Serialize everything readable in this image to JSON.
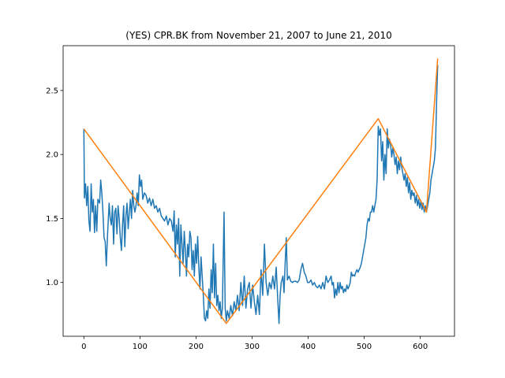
{
  "chart_data": {
    "type": "line",
    "title": "(YES) CPR.BK from November 21, 2007 to June 21, 2010",
    "xlabel": "",
    "ylabel": "",
    "xlim": [
      -37,
      661
    ],
    "ylim": [
      0.58,
      2.85
    ],
    "x_ticks": [
      0,
      100,
      200,
      300,
      400,
      500,
      600
    ],
    "y_ticks": [
      1.0,
      1.5,
      2.0,
      2.5
    ],
    "grid": false,
    "legend": "none",
    "series": [
      {
        "color": "#1f77b4",
        "points": [
          [
            0,
            2.2
          ],
          [
            1,
            1.66
          ],
          [
            3,
            1.77
          ],
          [
            5,
            1.6
          ],
          [
            7,
            1.75
          ],
          [
            9,
            1.48
          ],
          [
            11,
            1.4
          ],
          [
            13,
            1.77
          ],
          [
            15,
            1.55
          ],
          [
            17,
            1.65
          ],
          [
            19,
            1.39
          ],
          [
            21,
            1.6
          ],
          [
            23,
            1.4
          ],
          [
            25,
            1.65
          ],
          [
            28,
            1.62
          ],
          [
            30,
            1.8
          ],
          [
            32,
            1.7
          ],
          [
            34,
            1.55
          ],
          [
            36,
            1.35
          ],
          [
            38,
            1.32
          ],
          [
            40,
            1.13
          ],
          [
            42,
            1.35
          ],
          [
            45,
            1.62
          ],
          [
            47,
            1.5
          ],
          [
            49,
            1.45
          ],
          [
            51,
            1.6
          ],
          [
            53,
            1.3
          ],
          [
            55,
            1.55
          ],
          [
            57,
            1.58
          ],
          [
            59,
            1.38
          ],
          [
            61,
            1.6
          ],
          [
            63,
            1.5
          ],
          [
            65,
            1.35
          ],
          [
            67,
            1.25
          ],
          [
            69,
            1.45
          ],
          [
            71,
            1.6
          ],
          [
            73,
            1.28
          ],
          [
            75,
            1.52
          ],
          [
            77,
            1.62
          ],
          [
            79,
            1.42
          ],
          [
            81,
            1.55
          ],
          [
            83,
            1.65
          ],
          [
            85,
            1.5
          ],
          [
            87,
            1.72
          ],
          [
            89,
            1.6
          ],
          [
            91,
            1.55
          ],
          [
            93,
            1.6
          ],
          [
            95,
            1.7
          ],
          [
            97,
            1.6
          ],
          [
            99,
            1.84
          ],
          [
            101,
            1.75
          ],
          [
            103,
            1.8
          ],
          [
            105,
            1.65
          ],
          [
            108,
            1.7
          ],
          [
            111,
            1.68
          ],
          [
            114,
            1.62
          ],
          [
            117,
            1.66
          ],
          [
            120,
            1.6
          ],
          [
            123,
            1.65
          ],
          [
            126,
            1.58
          ],
          [
            129,
            1.6
          ],
          [
            132,
            1.55
          ],
          [
            135,
            1.58
          ],
          [
            138,
            1.52
          ],
          [
            141,
            1.5
          ],
          [
            144,
            1.48
          ],
          [
            147,
            1.52
          ],
          [
            150,
            1.45
          ],
          [
            153,
            1.5
          ],
          [
            156,
            1.48
          ],
          [
            159,
            1.4
          ],
          [
            161,
            1.56
          ],
          [
            163,
            1.2
          ],
          [
            165,
            1.45
          ],
          [
            167,
            1.3
          ],
          [
            169,
            1.5
          ],
          [
            171,
            1.05
          ],
          [
            173,
            1.45
          ],
          [
            175,
            1.3
          ],
          [
            177,
            1.15
          ],
          [
            179,
            1.4
          ],
          [
            181,
            1.25
          ],
          [
            183,
            1.05
          ],
          [
            185,
            1.3
          ],
          [
            187,
            1.2
          ],
          [
            189,
            1.4
          ],
          [
            191,
            1.35
          ],
          [
            193,
            1.1
          ],
          [
            195,
            1.25
          ],
          [
            197,
            1.05
          ],
          [
            199,
            1.3
          ],
          [
            201,
            1.15
          ],
          [
            203,
            1.36
          ],
          [
            205,
            1.12
          ],
          [
            207,
            0.95
          ],
          [
            209,
            1.2
          ],
          [
            211,
            1.05
          ],
          [
            213,
            0.9
          ],
          [
            215,
            0.72
          ],
          [
            217,
            0.7
          ],
          [
            219,
            0.78
          ],
          [
            221,
            0.72
          ],
          [
            223,
            0.95
          ],
          [
            225,
            0.8
          ],
          [
            227,
            1.1
          ],
          [
            229,
            0.92
          ],
          [
            231,
            1.3
          ],
          [
            233,
            0.88
          ],
          [
            235,
            1.15
          ],
          [
            237,
            0.82
          ],
          [
            239,
            0.9
          ],
          [
            241,
            0.78
          ],
          [
            243,
            0.85
          ],
          [
            245,
            0.72
          ],
          [
            247,
            0.8
          ],
          [
            250,
            1.55
          ],
          [
            252,
            0.8
          ],
          [
            254,
            0.7
          ],
          [
            256,
            0.78
          ],
          [
            259,
            0.72
          ],
          [
            262,
            0.82
          ],
          [
            265,
            0.74
          ],
          [
            268,
            0.85
          ],
          [
            271,
            0.78
          ],
          [
            274,
            0.9
          ],
          [
            277,
            0.78
          ],
          [
            280,
            1.0
          ],
          [
            283,
            0.82
          ],
          [
            286,
            1.05
          ],
          [
            289,
            0.8
          ],
          [
            292,
            0.95
          ],
          [
            295,
            1.0
          ],
          [
            298,
            0.8
          ],
          [
            301,
            0.98
          ],
          [
            304,
            0.85
          ],
          [
            307,
            0.75
          ],
          [
            310,
            0.9
          ],
          [
            313,
            0.75
          ],
          [
            316,
            1.1
          ],
          [
            319,
            0.9
          ],
          [
            322,
            1.3
          ],
          [
            325,
            1.0
          ],
          [
            328,
            0.9
          ],
          [
            331,
            1.0
          ],
          [
            334,
            0.95
          ],
          [
            337,
            1.05
          ],
          [
            340,
            0.95
          ],
          [
            343,
            1.12
          ],
          [
            346,
            0.85
          ],
          [
            348,
            0.68
          ],
          [
            350,
            0.9
          ],
          [
            352,
            1.0
          ],
          [
            355,
            1.05
          ],
          [
            357,
            0.92
          ],
          [
            359,
            1.15
          ],
          [
            361,
            1.35
          ],
          [
            363,
            1.02
          ],
          [
            366,
            1.05
          ],
          [
            369,
            1.01
          ],
          [
            372,
            1.0
          ],
          [
            375,
            1.01
          ],
          [
            378,
            1.01
          ],
          [
            381,
            1.0
          ],
          [
            384,
            1.02
          ],
          [
            387,
            1.1
          ],
          [
            390,
            1.15
          ],
          [
            393,
            1.08
          ],
          [
            396,
            1.05
          ],
          [
            399,
            1.0
          ],
          [
            402,
            1.0
          ],
          [
            405,
            1.02
          ],
          [
            408,
            0.98
          ],
          [
            411,
            1.0
          ],
          [
            414,
            0.97
          ],
          [
            417,
            0.96
          ],
          [
            420,
            0.98
          ],
          [
            423,
            0.95
          ],
          [
            426,
            1.0
          ],
          [
            429,
            0.95
          ],
          [
            432,
            1.05
          ],
          [
            435,
            1.0
          ],
          [
            438,
            1.02
          ],
          [
            441,
            1.05
          ],
          [
            443,
            0.98
          ],
          [
            445,
            1.0
          ],
          [
            447,
            0.88
          ],
          [
            449,
            0.95
          ],
          [
            451,
            0.9
          ],
          [
            453,
            1.0
          ],
          [
            455,
            0.92
          ],
          [
            457,
            1.0
          ],
          [
            459,
            0.95
          ],
          [
            461,
            0.97
          ],
          [
            463,
            0.92
          ],
          [
            465,
            0.95
          ],
          [
            467,
            0.93
          ],
          [
            469,
            0.98
          ],
          [
            471,
            0.95
          ],
          [
            473,
            0.97
          ],
          [
            475,
            1.0
          ],
          [
            477,
            1.08
          ],
          [
            479,
            1.05
          ],
          [
            481,
            1.06
          ],
          [
            483,
            1.05
          ],
          [
            485,
            1.08
          ],
          [
            487,
            1.1
          ],
          [
            489,
            1.08
          ],
          [
            491,
            1.1
          ],
          [
            493,
            1.12
          ],
          [
            495,
            1.15
          ],
          [
            497,
            1.2
          ],
          [
            499,
            1.25
          ],
          [
            501,
            1.3
          ],
          [
            503,
            1.35
          ],
          [
            505,
            1.45
          ],
          [
            507,
            1.5
          ],
          [
            509,
            1.48
          ],
          [
            511,
            1.55
          ],
          [
            513,
            1.55
          ],
          [
            515,
            1.6
          ],
          [
            517,
            1.55
          ],
          [
            519,
            1.6
          ],
          [
            521,
            1.65
          ],
          [
            523,
            1.8
          ],
          [
            525,
            2.22
          ],
          [
            527,
            2.15
          ],
          [
            529,
            2.2
          ],
          [
            531,
            1.95
          ],
          [
            533,
            2.1
          ],
          [
            535,
            1.8
          ],
          [
            537,
            2.0
          ],
          [
            539,
            1.85
          ],
          [
            541,
            2.2
          ],
          [
            543,
            2.05
          ],
          [
            545,
            2.12
          ],
          [
            547,
            2.08
          ],
          [
            549,
            1.98
          ],
          [
            551,
            2.05
          ],
          [
            553,
            2.0
          ],
          [
            555,
            1.92
          ],
          [
            557,
            1.98
          ],
          [
            559,
            1.85
          ],
          [
            561,
            1.95
          ],
          [
            563,
            1.88
          ],
          [
            565,
            1.98
          ],
          [
            567,
            1.9
          ],
          [
            569,
            1.85
          ],
          [
            571,
            1.8
          ],
          [
            573,
            1.85
          ],
          [
            575,
            1.75
          ],
          [
            577,
            1.82
          ],
          [
            579,
            1.7
          ],
          [
            581,
            1.78
          ],
          [
            583,
            1.65
          ],
          [
            585,
            1.72
          ],
          [
            587,
            1.68
          ],
          [
            589,
            1.7
          ],
          [
            591,
            1.62
          ],
          [
            593,
            1.68
          ],
          [
            595,
            1.6
          ],
          [
            597,
            1.65
          ],
          [
            599,
            1.58
          ],
          [
            601,
            1.64
          ],
          [
            603,
            1.57
          ],
          [
            605,
            1.62
          ],
          [
            607,
            1.55
          ],
          [
            609,
            1.6
          ],
          [
            611,
            1.55
          ],
          [
            613,
            1.6
          ],
          [
            615,
            1.65
          ],
          [
            617,
            1.7
          ],
          [
            619,
            1.8
          ],
          [
            621,
            1.85
          ],
          [
            623,
            1.9
          ],
          [
            625,
            1.95
          ],
          [
            627,
            2.05
          ],
          [
            629,
            2.4
          ],
          [
            631,
            2.7
          ]
        ]
      },
      {
        "color": "#ff7f0e",
        "points": [
          [
            0,
            2.2
          ],
          [
            254,
            0.68
          ],
          [
            525,
            2.28
          ],
          [
            611,
            1.55
          ],
          [
            631,
            2.75
          ]
        ]
      }
    ]
  }
}
